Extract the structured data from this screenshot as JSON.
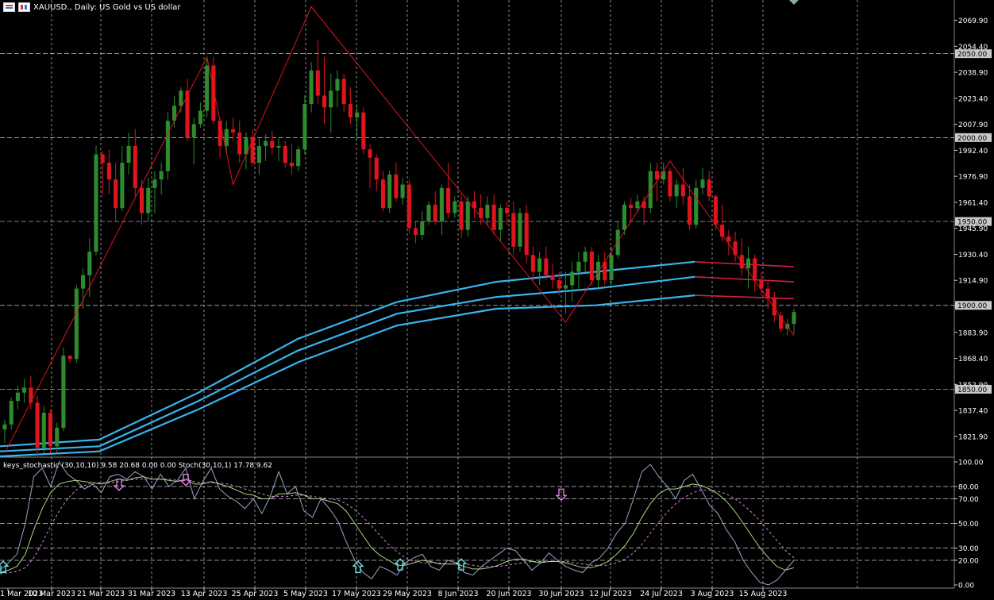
{
  "window": {
    "title": "XAUUSD., Daily:  US Gold vs US dollar",
    "symbol_icon": "symbol-flag-icon",
    "period_icon": "chart-type-icon"
  },
  "indicator": {
    "label": "keys_stochastic (30,10,10) 9.58 20.68 0.00 0.00",
    "stoch_label": "Stoch(30,10,1) 17.78 9.62"
  },
  "colors": {
    "background": "#000000",
    "grid": "#c8c8c8",
    "bull": "#2e8b2e",
    "bear": "#e0141e",
    "zigzag": "#e0141e",
    "ma_blue": "#39b4ee",
    "ma_red": "#d42041",
    "stoch_main": "#9aa5c8",
    "stoch_signal": "#a8d880",
    "stoch_slow": "#e080e0",
    "arrow_up": "#66e0e0",
    "arrow_down": "#e080e0",
    "price_tag_bg": "#c8c8c8"
  },
  "price_axis": {
    "ticks": [
      "2069.90",
      "2054.40",
      "2038.90",
      "2023.40",
      "2007.90",
      "1992.40",
      "1976.90",
      "1961.40",
      "1945.90",
      "1930.40",
      "1914.90",
      "1899.40",
      "1883.90",
      "1868.40",
      "1852.90",
      "1837.40",
      "1821.90"
    ],
    "tagged_levels": [
      "2050.00",
      "2000.00",
      "1950.00",
      "1900.00",
      "1850.00"
    ]
  },
  "stoch_axis": {
    "ticks": [
      "100.00",
      "80.00",
      "70.00",
      "50.00",
      "30.00",
      "20.00",
      "0.00"
    ]
  },
  "time_axis": {
    "labels": [
      "1 Mar 2023",
      "10 Mar 2023",
      "21 Mar 2023",
      "31 Mar 2023",
      "13 Apr 2023",
      "25 Apr 2023",
      "5 May 2023",
      "17 May 2023",
      "29 May 2023",
      "8 Jun 2023",
      "20 Jun 2023",
      "30 Jun 2023",
      "12 Jul 2023",
      "24 Jul 2023",
      "3 Aug 2023",
      "15 Aug 2023"
    ]
  },
  "chart_data": {
    "type": "candlestick",
    "symbol": "XAUUSD.",
    "timeframe": "Daily",
    "ylim": [
      1810,
      2082
    ],
    "candles": [
      [
        1826,
        1832,
        1818,
        1829
      ],
      [
        1829,
        1845,
        1826,
        1843
      ],
      [
        1843,
        1852,
        1838,
        1848
      ],
      [
        1848,
        1856,
        1842,
        1851
      ],
      [
        1851,
        1858,
        1838,
        1842
      ],
      [
        1842,
        1846,
        1810,
        1815
      ],
      [
        1815,
        1840,
        1812,
        1836
      ],
      [
        1836,
        1838,
        1812,
        1816
      ],
      [
        1816,
        1830,
        1812,
        1827
      ],
      [
        1827,
        1875,
        1825,
        1870
      ],
      [
        1870,
        1870,
        1866,
        1868
      ],
      [
        1868,
        1912,
        1866,
        1910
      ],
      [
        1910,
        1922,
        1898,
        1918
      ],
      [
        1918,
        1940,
        1905,
        1932
      ],
      [
        1932,
        1995,
        1930,
        1990
      ],
      [
        1990,
        1992,
        1966,
        1985
      ],
      [
        1985,
        1993,
        1966,
        1975
      ],
      [
        1975,
        1985,
        1950,
        1958
      ],
      [
        1958,
        1995,
        1956,
        1985
      ],
      [
        1985,
        2003,
        1978,
        1995
      ],
      [
        1995,
        2005,
        1965,
        1970
      ],
      [
        1970,
        1975,
        1948,
        1955
      ],
      [
        1955,
        1976,
        1950,
        1970
      ],
      [
        1970,
        1980,
        1955,
        1975
      ],
      [
        1975,
        1985,
        1966,
        1980
      ],
      [
        1980,
        2015,
        1975,
        2010
      ],
      [
        2010,
        2025,
        2006,
        2019
      ],
      [
        2019,
        2030,
        2015,
        2028
      ],
      [
        2028,
        2035,
        1998,
        2000
      ],
      [
        2000,
        2012,
        1984,
        2008
      ],
      [
        2008,
        2021,
        2006,
        2016
      ],
      [
        2016,
        2048,
        2012,
        2043
      ],
      [
        2043,
        2048,
        2008,
        2010
      ],
      [
        2010,
        2012,
        1988,
        1995
      ],
      [
        1995,
        2010,
        1990,
        2005
      ],
      [
        2005,
        2012,
        1998,
        2003
      ],
      [
        2003,
        2010,
        1985,
        1990
      ],
      [
        1990,
        2003,
        1981,
        2000
      ],
      [
        2000,
        2005,
        1983,
        1985
      ],
      [
        1985,
        2000,
        1978,
        1995
      ],
      [
        1995,
        2002,
        1986,
        1998
      ],
      [
        1998,
        2004,
        1990,
        1994
      ],
      [
        1994,
        2000,
        1986,
        1995
      ],
      [
        1995,
        1998,
        1982,
        1985
      ],
      [
        1985,
        1996,
        1978,
        1983
      ],
      [
        1983,
        1995,
        1980,
        1993
      ],
      [
        1993,
        2025,
        1990,
        2020
      ],
      [
        2020,
        2045,
        2015,
        2040
      ],
      [
        2040,
        2058,
        2020,
        2025
      ],
      [
        2025,
        2048,
        2008,
        2018
      ],
      [
        2018,
        2038,
        2003,
        2028
      ],
      [
        2028,
        2040,
        2018,
        2035
      ],
      [
        2035,
        2038,
        2015,
        2020
      ],
      [
        2020,
        2030,
        2008,
        2012
      ],
      [
        2012,
        2020,
        1998,
        2015
      ],
      [
        2015,
        2018,
        1990,
        1993
      ],
      [
        1993,
        1996,
        1970,
        1988
      ],
      [
        1988,
        1990,
        1968,
        1975
      ],
      [
        1975,
        1980,
        1956,
        1958
      ],
      [
        1958,
        1980,
        1955,
        1978
      ],
      [
        1978,
        1985,
        1962,
        1964
      ],
      [
        1964,
        1976,
        1960,
        1972
      ],
      [
        1972,
        1975,
        1943,
        1946
      ],
      [
        1946,
        1950,
        1937,
        1942
      ],
      [
        1942,
        1956,
        1939,
        1950
      ],
      [
        1950,
        1962,
        1948,
        1960
      ],
      [
        1960,
        1968,
        1948,
        1950
      ],
      [
        1950,
        1972,
        1942,
        1970
      ],
      [
        1970,
        1985,
        1952,
        1955
      ],
      [
        1955,
        1965,
        1952,
        1962
      ],
      [
        1962,
        1966,
        1940,
        1945
      ],
      [
        1945,
        1965,
        1941,
        1962
      ],
      [
        1962,
        1968,
        1952,
        1958
      ],
      [
        1958,
        1966,
        1948,
        1952
      ],
      [
        1952,
        1965,
        1948,
        1960
      ],
      [
        1960,
        1966,
        1942,
        1945
      ],
      [
        1945,
        1960,
        1938,
        1958
      ],
      [
        1958,
        1962,
        1948,
        1955
      ],
      [
        1955,
        1962,
        1930,
        1935
      ],
      [
        1935,
        1958,
        1932,
        1955
      ],
      [
        1955,
        1960,
        1925,
        1930
      ],
      [
        1930,
        1935,
        1915,
        1920
      ],
      [
        1920,
        1932,
        1912,
        1928
      ],
      [
        1928,
        1935,
        1915,
        1918
      ],
      [
        1918,
        1925,
        1910,
        1915
      ],
      [
        1915,
        1920,
        1906,
        1910
      ],
      [
        1910,
        1920,
        1895,
        1912
      ],
      [
        1912,
        1926,
        1902,
        1920
      ],
      [
        1920,
        1932,
        1910,
        1926
      ],
      [
        1926,
        1935,
        1920,
        1932
      ],
      [
        1932,
        1935,
        1912,
        1915
      ],
      [
        1915,
        1930,
        1910,
        1926
      ],
      [
        1926,
        1932,
        1912,
        1915
      ],
      [
        1915,
        1935,
        1912,
        1930
      ],
      [
        1930,
        1950,
        1928,
        1945
      ],
      [
        1945,
        1962,
        1942,
        1960
      ],
      [
        1960,
        1964,
        1950,
        1958
      ],
      [
        1958,
        1966,
        1956,
        1962
      ],
      [
        1962,
        1965,
        1948,
        1958
      ],
      [
        1958,
        1985,
        1955,
        1980
      ],
      [
        1980,
        1985,
        1962,
        1975
      ],
      [
        1975,
        1985,
        1972,
        1980
      ],
      [
        1980,
        1982,
        1962,
        1965
      ],
      [
        1965,
        1975,
        1958,
        1972
      ],
      [
        1972,
        1982,
        1960,
        1965
      ],
      [
        1965,
        1972,
        1945,
        1948
      ],
      [
        1948,
        1975,
        1946,
        1970
      ],
      [
        1970,
        1982,
        1966,
        1975
      ],
      [
        1975,
        1980,
        1962,
        1965
      ],
      [
        1965,
        1966,
        1945,
        1948
      ],
      [
        1948,
        1960,
        1938,
        1941
      ],
      [
        1941,
        1945,
        1930,
        1938
      ],
      [
        1938,
        1944,
        1926,
        1930
      ],
      [
        1930,
        1940,
        1918,
        1922
      ],
      [
        1922,
        1935,
        1910,
        1928
      ],
      [
        1928,
        1930,
        1908,
        1915
      ],
      [
        1915,
        1920,
        1906,
        1910
      ],
      [
        1910,
        1914,
        1898,
        1904
      ],
      [
        1904,
        1908,
        1890,
        1894
      ],
      [
        1894,
        1896,
        1884,
        1886
      ],
      [
        1886,
        1892,
        1882,
        1889
      ],
      [
        1889,
        1898,
        1883,
        1896
      ]
    ],
    "zigzag": [
      {
        "bar": 0,
        "price": 1812
      },
      {
        "bar": 31,
        "price": 2048
      },
      {
        "bar": 35,
        "price": 1972
      },
      {
        "bar": 47,
        "price": 2078
      },
      {
        "bar": 86,
        "price": 1890
      },
      {
        "bar": 102,
        "price": 1986
      },
      {
        "bar": 121,
        "price": 1882
      }
    ],
    "moving_averages": [
      {
        "color_key": "ma_blue",
        "values": [
          1816,
          1820,
          1848,
          1880,
          1902,
          1914,
          1920,
          1926,
          1923
        ],
        "tail_color_key": "ma_red",
        "tail_from": 7
      },
      {
        "color_key": "ma_blue",
        "values": [
          1813,
          1816,
          1843,
          1873,
          1895,
          1905,
          1910,
          1917,
          1914
        ],
        "tail_color_key": "ma_red",
        "tail_from": 7
      },
      {
        "color_key": "ma_blue",
        "values": [
          1810,
          1813,
          1838,
          1866,
          1888,
          1898,
          1900,
          1906,
          1904
        ],
        "tail_color_key": "ma_red",
        "tail_from": 7
      }
    ],
    "stochastic": {
      "ylim": [
        0,
        100
      ],
      "main": [
        12,
        18,
        25,
        50,
        88,
        95,
        80,
        100,
        90,
        85,
        78,
        82,
        75,
        88,
        90,
        86,
        92,
        88,
        78,
        90,
        80,
        85,
        95,
        70,
        84,
        95,
        78,
        72,
        68,
        62,
        70,
        58,
        72,
        92,
        74,
        80,
        60,
        55,
        70,
        62,
        52,
        35,
        20,
        10,
        5,
        15,
        12,
        8,
        18,
        22,
        25,
        15,
        12,
        20,
        18,
        10,
        8,
        15,
        20,
        25,
        30,
        28,
        20,
        12,
        18,
        26,
        20,
        15,
        12,
        10,
        18,
        22,
        30,
        42,
        50,
        70,
        92,
        98,
        88,
        80,
        70,
        85,
        90,
        78,
        65,
        58,
        45,
        35,
        20,
        10,
        2,
        0,
        4,
        12,
        20
      ],
      "signal": [
        10,
        12,
        15,
        25,
        45,
        62,
        75,
        82,
        84,
        85,
        84,
        83,
        82,
        84,
        86,
        85,
        87,
        88,
        86,
        86,
        85,
        84,
        86,
        82,
        82,
        84,
        82,
        80,
        77,
        74,
        73,
        70,
        70,
        74,
        74,
        75,
        73,
        70,
        70,
        68,
        66,
        60,
        50,
        40,
        30,
        24,
        20,
        16,
        16,
        18,
        20,
        19,
        17,
        17,
        17,
        15,
        13,
        13,
        14,
        16,
        19,
        21,
        21,
        19,
        18,
        19,
        19,
        18,
        16,
        14,
        14,
        16,
        19,
        25,
        32,
        42,
        55,
        66,
        74,
        78,
        78,
        80,
        82,
        81,
        78,
        74,
        68,
        60,
        50,
        40,
        30,
        22,
        15,
        12,
        14
      ],
      "slow": [
        9,
        10,
        11,
        14,
        22,
        34,
        48,
        60,
        70,
        77,
        81,
        83,
        83,
        83,
        84,
        85,
        86,
        86,
        86,
        86,
        86,
        85,
        85,
        84,
        83,
        83,
        83,
        82,
        80,
        78,
        76,
        74,
        72,
        72,
        72,
        73,
        73,
        72,
        71,
        70,
        69,
        66,
        61,
        55,
        48,
        40,
        33,
        27,
        22,
        19,
        18,
        18,
        18,
        17,
        17,
        17,
        16,
        15,
        15,
        15,
        16,
        17,
        18,
        19,
        19,
        19,
        19,
        19,
        18,
        17,
        16,
        16,
        16,
        18,
        21,
        26,
        33,
        42,
        51,
        59,
        66,
        71,
        75,
        77,
        77,
        76,
        74,
        70,
        65,
        59,
        52,
        44,
        36,
        28,
        22
      ]
    },
    "signal_arrows": [
      {
        "type": "up",
        "x_frac": 0.0,
        "value": 14
      },
      {
        "type": "down",
        "x_frac": 0.146,
        "value": 82
      },
      {
        "type": "down",
        "x_frac": 0.23,
        "value": 86
      },
      {
        "type": "up",
        "x_frac": 0.447,
        "value": 14
      },
      {
        "type": "up",
        "x_frac": 0.5,
        "value": 16
      },
      {
        "type": "up",
        "x_frac": 0.577,
        "value": 16
      },
      {
        "type": "down",
        "x_frac": 0.703,
        "value": 74
      }
    ]
  }
}
